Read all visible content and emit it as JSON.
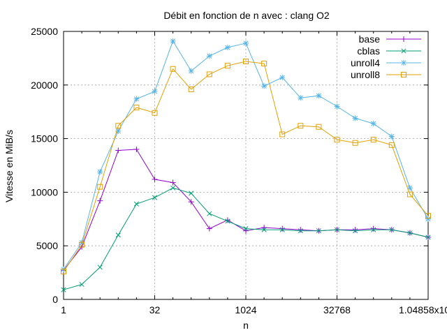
{
  "chart_data": {
    "type": "line",
    "title": "Débit en fonction de n avec :  clang O2",
    "xlabel": "n",
    "ylabel": "Vitesse en MiB/s",
    "x_scale": "log2",
    "xlim": [
      1,
      1048576
    ],
    "ylim": [
      0,
      25000
    ],
    "x_ticks": [
      1,
      32,
      1024,
      32768,
      1048576
    ],
    "x_tick_labels": [
      "1",
      "32",
      "1024",
      "32768",
      "1.04858x10"
    ],
    "y_ticks": [
      0,
      5000,
      10000,
      15000,
      20000,
      25000
    ],
    "y_tick_labels": [
      "0",
      "5000",
      "10000",
      "15000",
      "20000",
      "25000"
    ],
    "grid": true,
    "legend_position": "top-right",
    "x": [
      1,
      2,
      4,
      8,
      16,
      32,
      64,
      128,
      256,
      512,
      1024,
      2048,
      4096,
      8192,
      16384,
      32768,
      65536,
      131072,
      262144,
      524288,
      1048576
    ],
    "series": [
      {
        "name": "base",
        "color": "#9400d3",
        "marker": "plus",
        "values": [
          2700,
          4900,
          9200,
          13900,
          14000,
          11200,
          10900,
          9100,
          6600,
          7400,
          6400,
          6700,
          6600,
          6500,
          6400,
          6500,
          6500,
          6600,
          6500,
          6200,
          5800
        ]
      },
      {
        "name": "cblas",
        "color": "#009e73",
        "marker": "cross",
        "values": [
          900,
          1400,
          3000,
          6000,
          8900,
          9500,
          10400,
          9900,
          8000,
          7300,
          6600,
          6500,
          6500,
          6400,
          6400,
          6500,
          6400,
          6500,
          6500,
          6200,
          5800
        ]
      },
      {
        "name": "unroll4",
        "color": "#56b4e9",
        "marker": "star",
        "values": [
          2800,
          5300,
          11900,
          15700,
          18700,
          19400,
          24100,
          21300,
          22700,
          23500,
          23900,
          19900,
          20700,
          18800,
          19000,
          18000,
          16900,
          16400,
          15200,
          10400,
          7500
        ]
      },
      {
        "name": "unroll8",
        "color": "#e69f00",
        "marker": "square",
        "values": [
          2600,
          5100,
          10500,
          16200,
          17900,
          17400,
          21500,
          19600,
          21000,
          21800,
          22200,
          22000,
          15400,
          16200,
          16100,
          14900,
          14600,
          14900,
          14400,
          9800,
          7800
        ]
      }
    ]
  }
}
